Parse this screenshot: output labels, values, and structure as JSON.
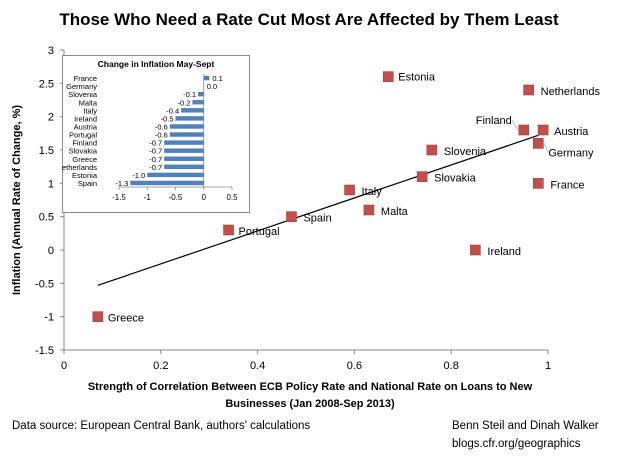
{
  "title": "Those Who Need a Rate Cut Most Are Affected by Them Least",
  "footer": {
    "source": "Data source: European Central Bank, authors' calculations",
    "authors": "Benn Steil and Dinah Walker",
    "site": "blogs.cfr.org/geographics"
  },
  "chart_data": [
    {
      "type": "scatter",
      "title": "Those Who Need a Rate Cut Most Are Affected by Them Least",
      "xlabel": "Strength of Correlation Between ECB Policy Rate and National Rate on Loans to New Businesses (Jan 2008-Sep 2013)",
      "xlabel_lines": [
        "Strength of Correlation Between ECB Policy Rate and National Rate on Loans to New",
        "Businesses (Jan 2008-Sep 2013)"
      ],
      "ylabel": "Inflation (Annual Rate of Change, %)",
      "xlim": [
        0,
        1
      ],
      "ylim": [
        -1.5,
        3
      ],
      "xticks": [
        "0",
        "0.2",
        "0.4",
        "0.6",
        "0.8",
        "1"
      ],
      "yticks": [
        "-1.5",
        "-1",
        "-0.5",
        "0",
        "0.5",
        "1",
        "1.5",
        "2",
        "2.5",
        "3"
      ],
      "grid": false,
      "marker_color": "#c0504d",
      "points": [
        {
          "label": "Estonia",
          "x": 0.67,
          "y": 2.6
        },
        {
          "label": "Netherlands",
          "x": 0.96,
          "y": 2.4
        },
        {
          "label": "Finland",
          "x": 0.95,
          "y": 1.8
        },
        {
          "label": "Austria",
          "x": 0.99,
          "y": 1.8
        },
        {
          "label": "Germany",
          "x": 0.98,
          "y": 1.6
        },
        {
          "label": "Slovenia",
          "x": 0.76,
          "y": 1.5
        },
        {
          "label": "Slovakia",
          "x": 0.74,
          "y": 1.1
        },
        {
          "label": "France",
          "x": 0.98,
          "y": 1.0
        },
        {
          "label": "Italy",
          "x": 0.59,
          "y": 0.9
        },
        {
          "label": "Malta",
          "x": 0.63,
          "y": 0.6
        },
        {
          "label": "Spain",
          "x": 0.47,
          "y": 0.5
        },
        {
          "label": "Portugal",
          "x": 0.34,
          "y": 0.3
        },
        {
          "label": "Ireland",
          "x": 0.85,
          "y": 0.0
        },
        {
          "label": "Greece",
          "x": 0.07,
          "y": -1.0
        }
      ],
      "trendline": {
        "x": [
          0.07,
          0.98
        ],
        "y": [
          -0.53,
          1.72
        ],
        "color": "#000000"
      }
    },
    {
      "type": "bar",
      "orientation": "horizontal",
      "title": "Change in Inflation May-Sept",
      "xlim": [
        -1.5,
        0.5
      ],
      "xticks": [
        "-1.5",
        "-1",
        "-0.5",
        "0",
        "0.5"
      ],
      "bar_color": "#4f81bd",
      "categories": [
        "France",
        "Germany",
        "Slovenia",
        "Malta",
        "Italy",
        "Ireland",
        "Austria",
        "Portugal",
        "Finland",
        "Slovakia",
        "Greece",
        "Netherlands",
        "Estonia",
        "Spain"
      ],
      "values": [
        0.1,
        0.0,
        -0.1,
        -0.2,
        -0.4,
        -0.5,
        -0.6,
        -0.6,
        -0.7,
        -0.7,
        -0.7,
        -0.7,
        -1.0,
        -1.3
      ],
      "value_labels": [
        "0.1",
        "0.0",
        "-0.1",
        "-0.2",
        "-0.4",
        "-0.5",
        "-0.6",
        "-0.6",
        "-0.7",
        "-0.7",
        "-0.7",
        "-0.7",
        "-1.0",
        "-1.3"
      ]
    }
  ]
}
